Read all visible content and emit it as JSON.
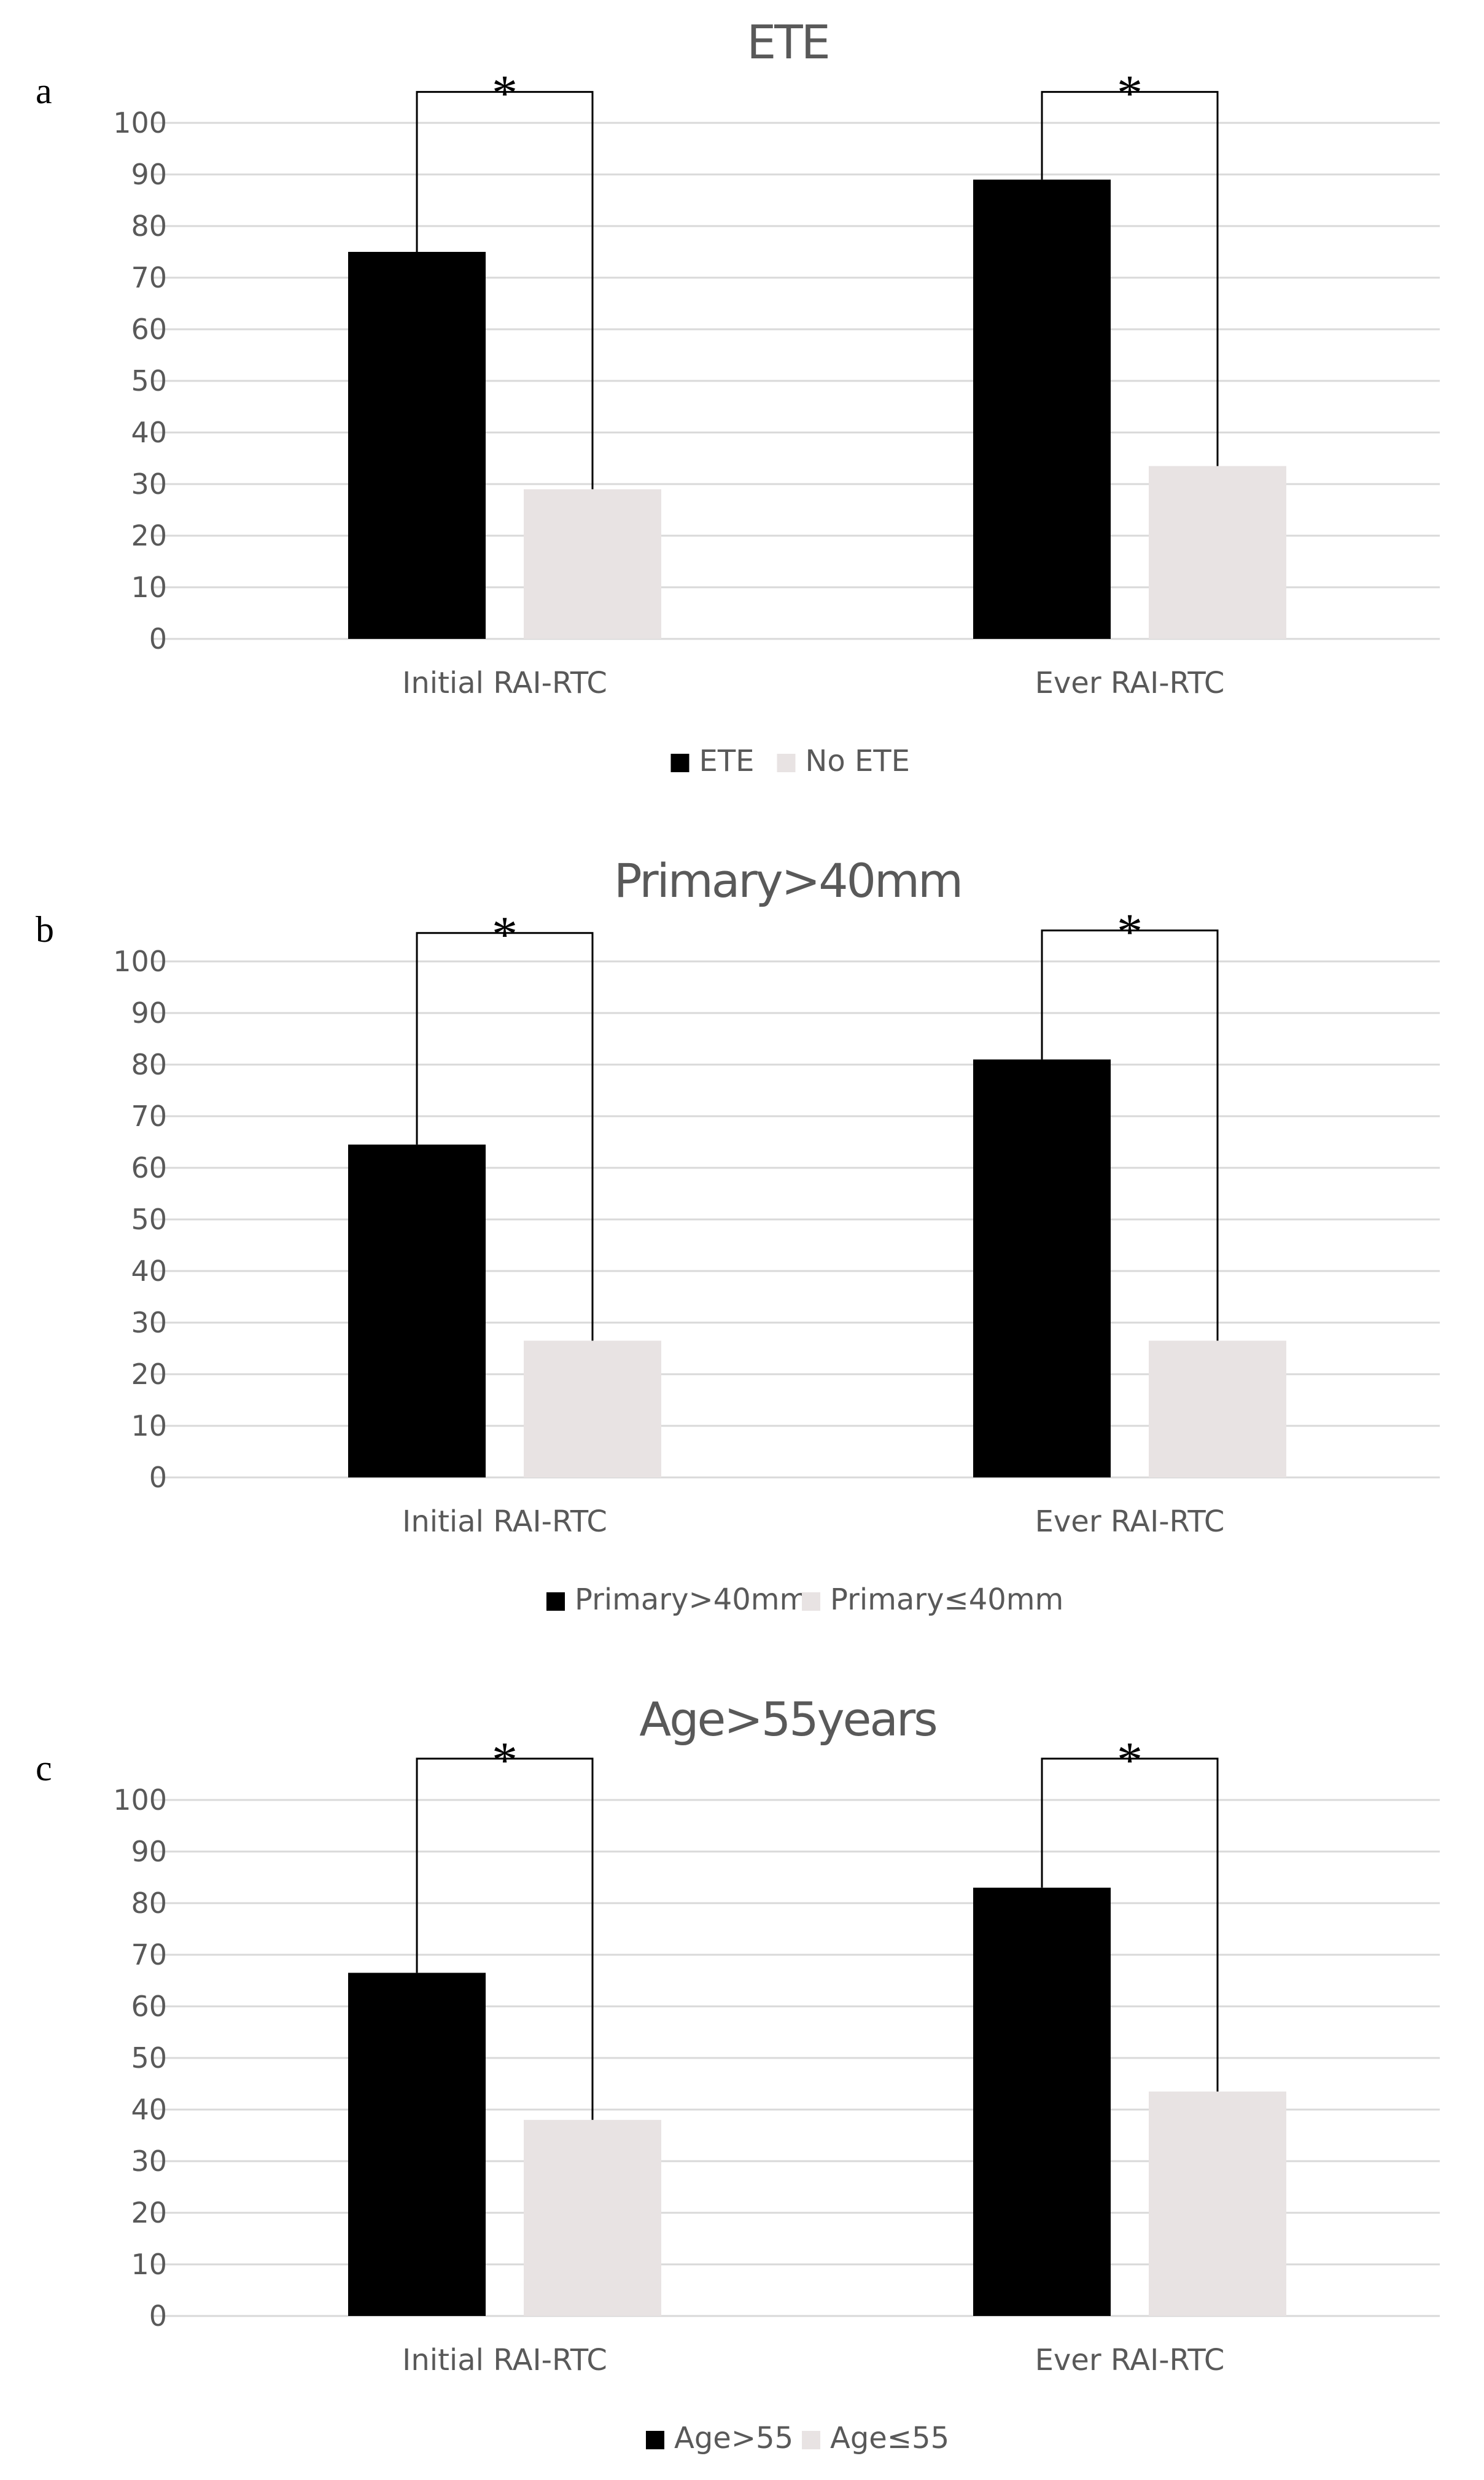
{
  "colors": {
    "series_a": "#000000",
    "series_b": "#e8e3e3",
    "grid": "#d9d9d9",
    "axis_text": "#595959",
    "bracket": "#000000"
  },
  "chart_data": [
    {
      "panel": "a",
      "type": "bar",
      "title": "ETE",
      "categories": [
        "Initial RAI-RTC",
        "Ever RAI-RTC"
      ],
      "series": [
        {
          "name": "ETE",
          "values": [
            75,
            89
          ]
        },
        {
          "name": "No ETE",
          "values": [
            29,
            33.5
          ]
        }
      ],
      "ylim": [
        0,
        100
      ],
      "yticks": [
        "100",
        "90",
        "80",
        "70",
        "60",
        "50",
        "40",
        "30",
        "20",
        "10",
        "0"
      ],
      "grid": true,
      "legend": "bottom-center",
      "significance": [
        "*",
        "*"
      ],
      "bracket_top": [
        106,
        106
      ]
    },
    {
      "panel": "b",
      "type": "bar",
      "title": "Primary>40mm",
      "categories": [
        "Initial RAI-RTC",
        "Ever RAI-RTC"
      ],
      "series": [
        {
          "name": "Primary>40mm",
          "values": [
            64.5,
            81
          ]
        },
        {
          "name": "Primary≤40mm",
          "values": [
            26.5,
            26.5
          ]
        }
      ],
      "ylim": [
        0,
        100
      ],
      "yticks": [
        "100",
        "90",
        "80",
        "70",
        "60",
        "50",
        "40",
        "30",
        "20",
        "10",
        "0"
      ],
      "grid": true,
      "legend": "bottom-center",
      "significance": [
        "*",
        "*"
      ],
      "bracket_top": [
        105.5,
        106
      ]
    },
    {
      "panel": "c",
      "type": "bar",
      "title": "Age>55years",
      "categories": [
        "Initial RAI-RTC",
        "Ever RAI-RTC"
      ],
      "series": [
        {
          "name": "Age>55",
          "values": [
            66.5,
            83
          ]
        },
        {
          "name": "Age≤55",
          "values": [
            38,
            43.5
          ]
        }
      ],
      "ylim": [
        0,
        100
      ],
      "yticks": [
        "100",
        "90",
        "80",
        "70",
        "60",
        "50",
        "40",
        "30",
        "20",
        "10",
        "0"
      ],
      "grid": true,
      "legend": "bottom-center",
      "significance": [
        "*",
        "*"
      ],
      "bracket_top": [
        108,
        108
      ]
    }
  ]
}
